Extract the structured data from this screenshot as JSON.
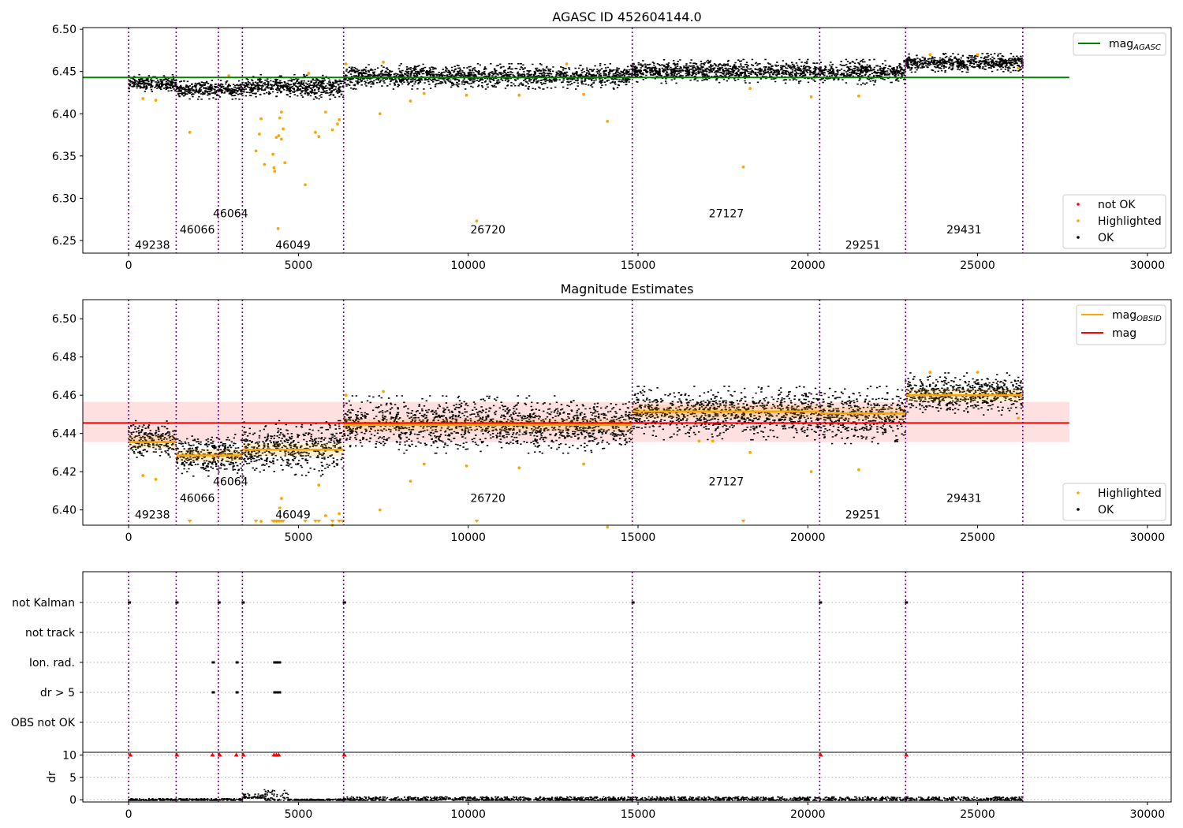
{
  "chart_data": [
    {
      "type": "scatter",
      "title": "AGASC ID 452604144.0",
      "xlim": [
        -1350,
        30700
      ],
      "ylim": [
        6.235,
        6.502
      ],
      "xticks": [
        0,
        5000,
        10000,
        15000,
        20000,
        25000,
        30000
      ],
      "yticks": [
        "6.25",
        "6.30",
        "6.35",
        "6.40",
        "6.45",
        "6.50"
      ],
      "grid": false,
      "legend_upper": {
        "placement": "top-right",
        "entries": [
          {
            "label": "mag",
            "sub": "AGASC",
            "color": "#008000"
          }
        ]
      },
      "legend_lower": {
        "placement": "bottom-right",
        "entries": [
          {
            "label": "not OK",
            "color": "#ff0000"
          },
          {
            "label": "Highlighted",
            "color": "#ffa500"
          },
          {
            "label": "OK",
            "color": "#000000"
          }
        ]
      },
      "mag_agasc": 6.443,
      "mag_agasc_xrange": [
        -1350,
        27700
      ],
      "obsid_boundaries": [
        0,
        1400,
        2640,
        3350,
        6330,
        14830,
        20350,
        22880,
        26330
      ],
      "obsid_labels": [
        {
          "text": "49238",
          "x": 700,
          "y": 6.245
        },
        {
          "text": "46066",
          "x": 2020,
          "y": 6.263
        },
        {
          "text": "46064",
          "x": 3000,
          "y": 6.282
        },
        {
          "text": "46049",
          "x": 4840,
          "y": 6.245
        },
        {
          "text": "26720",
          "x": 10580,
          "y": 6.263
        },
        {
          "text": "27127",
          "x": 17600,
          "y": 6.282
        },
        {
          "text": "29251",
          "x": 21620,
          "y": 6.245
        },
        {
          "text": "29431",
          "x": 24600,
          "y": 6.263
        }
      ],
      "ok_bands": [
        {
          "x0": 0,
          "x1": 1400,
          "lo": 6.427,
          "hi": 6.447
        },
        {
          "x0": 1400,
          "x1": 2640,
          "lo": 6.418,
          "hi": 6.44
        },
        {
          "x0": 2640,
          "x1": 3350,
          "lo": 6.418,
          "hi": 6.44
        },
        {
          "x0": 3350,
          "x1": 6330,
          "lo": 6.418,
          "hi": 6.447
        },
        {
          "x0": 6330,
          "x1": 14830,
          "lo": 6.43,
          "hi": 6.46
        },
        {
          "x0": 14830,
          "x1": 20350,
          "lo": 6.437,
          "hi": 6.465
        },
        {
          "x0": 20350,
          "x1": 22880,
          "lo": 6.435,
          "hi": 6.465
        },
        {
          "x0": 22880,
          "x1": 26330,
          "lo": 6.45,
          "hi": 6.472
        }
      ],
      "highlighted_points": [
        [
          420,
          6.418
        ],
        [
          800,
          6.416
        ],
        [
          1800,
          6.378
        ],
        [
          2950,
          6.445
        ],
        [
          3900,
          6.394
        ],
        [
          3750,
          6.356
        ],
        [
          4000,
          6.34
        ],
        [
          4250,
          6.352
        ],
        [
          4280,
          6.336
        ],
        [
          4300,
          6.332
        ],
        [
          4350,
          6.372
        ],
        [
          4420,
          6.374
        ],
        [
          4450,
          6.395
        ],
        [
          4500,
          6.402
        ],
        [
          4500,
          6.37
        ],
        [
          4550,
          6.382
        ],
        [
          4600,
          6.342
        ],
        [
          4400,
          6.264
        ],
        [
          5200,
          6.316
        ],
        [
          5500,
          6.378
        ],
        [
          5600,
          6.373
        ],
        [
          5800,
          6.402
        ],
        [
          6000,
          6.381
        ],
        [
          6150,
          6.388
        ],
        [
          6200,
          6.393
        ],
        [
          3850,
          6.376
        ],
        [
          7400,
          6.4
        ],
        [
          8300,
          6.415
        ],
        [
          8700,
          6.424
        ],
        [
          9950,
          6.422
        ],
        [
          10250,
          6.273
        ],
        [
          11500,
          6.422
        ],
        [
          13400,
          6.423
        ],
        [
          14100,
          6.391
        ],
        [
          18100,
          6.337
        ],
        [
          18300,
          6.43
        ],
        [
          20100,
          6.42
        ],
        [
          21500,
          6.421
        ],
        [
          6400,
          6.459
        ],
        [
          7500,
          6.461
        ],
        [
          12900,
          6.459
        ],
        [
          23600,
          6.47
        ],
        [
          25000,
          6.47
        ],
        [
          26200,
          6.454
        ],
        [
          5300,
          6.448
        ]
      ]
    },
    {
      "type": "scatter",
      "title": "Magnitude Estimates",
      "xlim": [
        -1350,
        30700
      ],
      "ylim": [
        6.392,
        6.51
      ],
      "xticks": [
        0,
        5000,
        10000,
        15000,
        20000,
        25000,
        30000
      ],
      "yticks": [
        "6.40",
        "6.42",
        "6.44",
        "6.46",
        "6.48",
        "6.50"
      ],
      "grid": false,
      "legend_upper": {
        "placement": "top-right",
        "entries": [
          {
            "label": "mag",
            "sub": "OBSID",
            "color": "#ffa500"
          },
          {
            "label": "mag",
            "sub": "",
            "color": "#ff0000"
          }
        ]
      },
      "legend_lower": {
        "placement": "bottom-right",
        "entries": [
          {
            "label": "Highlighted",
            "color": "#ffa500"
          },
          {
            "label": "OK",
            "color": "#000000"
          }
        ]
      },
      "mag": 6.4455,
      "mag_band": [
        6.4355,
        6.4565
      ],
      "mag_xrange": [
        -1350,
        27700
      ],
      "mag_obsid": [
        {
          "x0": 0,
          "x1": 1400,
          "y": 6.4355
        },
        {
          "x0": 1400,
          "x1": 2640,
          "y": 6.4285
        },
        {
          "x0": 2640,
          "x1": 3350,
          "y": 6.4285
        },
        {
          "x0": 3350,
          "x1": 6330,
          "y": 6.4315
        },
        {
          "x0": 6330,
          "x1": 14830,
          "y": 6.4445
        },
        {
          "x0": 14830,
          "x1": 20350,
          "y": 6.4515
        },
        {
          "x0": 20350,
          "x1": 22880,
          "y": 6.4505
        },
        {
          "x0": 22880,
          "x1": 26330,
          "y": 6.46
        }
      ],
      "ok_bands": [
        {
          "x0": 0,
          "x1": 1400,
          "lo": 6.427,
          "hi": 6.447
        },
        {
          "x0": 1400,
          "x1": 2640,
          "lo": 6.418,
          "hi": 6.44
        },
        {
          "x0": 2640,
          "x1": 3350,
          "lo": 6.418,
          "hi": 6.44
        },
        {
          "x0": 3350,
          "x1": 6330,
          "lo": 6.418,
          "hi": 6.447
        },
        {
          "x0": 6330,
          "x1": 14830,
          "lo": 6.43,
          "hi": 6.46
        },
        {
          "x0": 14830,
          "x1": 20350,
          "lo": 6.437,
          "hi": 6.465
        },
        {
          "x0": 20350,
          "x1": 22880,
          "lo": 6.435,
          "hi": 6.465
        },
        {
          "x0": 22880,
          "x1": 26330,
          "lo": 6.45,
          "hi": 6.472
        }
      ],
      "obsid_boundaries": [
        0,
        1400,
        2640,
        3350,
        6330,
        14830,
        20350,
        22880,
        26330
      ],
      "obsid_labels": [
        {
          "text": "49238",
          "x": 700,
          "y": 6.3975
        },
        {
          "text": "46066",
          "x": 2020,
          "y": 6.4062
        },
        {
          "text": "46064",
          "x": 3000,
          "y": 6.415
        },
        {
          "text": "46049",
          "x": 4840,
          "y": 6.3975
        },
        {
          "text": "26720",
          "x": 10580,
          "y": 6.4062
        },
        {
          "text": "27127",
          "x": 17600,
          "y": 6.415
        },
        {
          "text": "29251",
          "x": 21620,
          "y": 6.3975
        },
        {
          "text": "29431",
          "x": 24600,
          "y": 6.4062
        }
      ],
      "highlighted_points": [
        [
          420,
          6.418
        ],
        [
          800,
          6.416
        ],
        [
          3900,
          6.394
        ],
        [
          4450,
          6.401
        ],
        [
          4500,
          6.406
        ],
        [
          5600,
          6.413
        ],
        [
          5800,
          6.397
        ],
        [
          6000,
          6.392
        ],
        [
          6200,
          6.398
        ],
        [
          7400,
          6.4
        ],
        [
          8300,
          6.415
        ],
        [
          8700,
          6.424
        ],
        [
          9950,
          6.423
        ],
        [
          11500,
          6.422
        ],
        [
          13400,
          6.424
        ],
        [
          14100,
          6.391
        ],
        [
          18300,
          6.43
        ],
        [
          20100,
          6.42
        ],
        [
          21500,
          6.421
        ],
        [
          6400,
          6.46
        ],
        [
          7500,
          6.462
        ],
        [
          23600,
          6.472
        ],
        [
          25000,
          6.472
        ],
        [
          26200,
          6.448
        ],
        [
          16800,
          6.436
        ],
        [
          17200,
          6.436
        ]
      ],
      "below_range_markers": [
        1800,
        3750,
        4250,
        4300,
        4350,
        4400,
        4450,
        4500,
        4550,
        5200,
        5500,
        5600,
        6000,
        6200,
        6300,
        10250,
        18100
      ]
    },
    {
      "type": "scatter",
      "title": "",
      "xlim": [
        -1350,
        30700
      ],
      "xticks": [
        0,
        5000,
        10000,
        15000,
        20000,
        25000,
        30000
      ],
      "flag_rows": [
        "not Kalman",
        "not track",
        "Ion. rad.",
        "dr > 5",
        "OBS not OK"
      ],
      "flag_points": {
        "not Kalman": [
          0,
          1400,
          2640,
          3350,
          6330,
          14830,
          20350,
          22880
        ],
        "not track": [],
        "Ion. rad.": [
          2470,
          3170,
          4280,
          4350,
          4420
        ],
        "dr > 5": [
          2470,
          3170,
          4280,
          4350,
          4420
        ],
        "OBS not OK": []
      },
      "dr_ylabel": "dr",
      "dr_yticks": [
        "0",
        "5",
        "10"
      ],
      "dr_ylim": [
        -0.5,
        10.6
      ],
      "dr_clipped_points": [
        50,
        1420,
        2470,
        2680,
        3170,
        3380,
        4280,
        4350,
        4420,
        6350,
        14850,
        20380,
        22900
      ],
      "dr_baseline": [
        {
          "x0": 0,
          "x1": 3350,
          "lo": 0.0,
          "hi": 0.4
        },
        {
          "x0": 3350,
          "x1": 4000,
          "lo": 0.5,
          "hi": 1.5
        },
        {
          "x0": 4000,
          "x1": 4700,
          "lo": 0.0,
          "hi": 2.5
        },
        {
          "x0": 4700,
          "x1": 6330,
          "lo": 0.0,
          "hi": 0.3
        },
        {
          "x0": 6330,
          "x1": 26330,
          "lo": 0.0,
          "hi": 0.8
        }
      ],
      "obsid_boundaries": [
        0,
        1400,
        2640,
        3350,
        6330,
        14830,
        20350,
        22880,
        26330
      ]
    }
  ]
}
